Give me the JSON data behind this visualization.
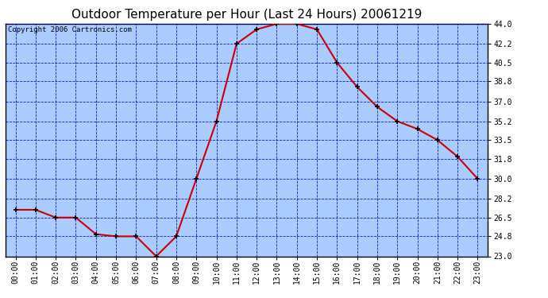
{
  "title": "Outdoor Temperature per Hour (Last 24 Hours) 20061219",
  "copyright": "Copyright 2006 Cartronics.com",
  "hours": [
    "00:00",
    "01:00",
    "02:00",
    "03:00",
    "04:00",
    "05:00",
    "06:00",
    "07:00",
    "08:00",
    "09:00",
    "10:00",
    "11:00",
    "12:00",
    "13:00",
    "14:00",
    "15:00",
    "16:00",
    "17:00",
    "18:00",
    "19:00",
    "20:00",
    "21:00",
    "22:00",
    "23:00"
  ],
  "temps": [
    27.2,
    27.2,
    26.5,
    26.5,
    25.0,
    24.8,
    24.8,
    23.0,
    24.8,
    30.0,
    35.2,
    42.2,
    43.5,
    44.0,
    44.0,
    43.5,
    40.5,
    38.3,
    36.5,
    35.2,
    34.5,
    33.5,
    32.0,
    30.0
  ],
  "line_color": "#cc0000",
  "marker_color": "#000000",
  "bg_color": "#aaccff",
  "grid_color": "#0000bb",
  "border_color": "#000000",
  "fig_bg_color": "#ffffff",
  "ylim_min": 23.0,
  "ylim_max": 44.0,
  "yticks": [
    23.0,
    24.8,
    26.5,
    28.2,
    30.0,
    31.8,
    33.5,
    35.2,
    37.0,
    38.8,
    40.5,
    42.2,
    44.0
  ],
  "ytick_labels": [
    "23.0",
    "24.8",
    "26.5",
    "28.2",
    "30.0",
    "31.8",
    "33.5",
    "35.2",
    "37.0",
    "38.8",
    "40.5",
    "42.2",
    "44.0"
  ],
  "title_fontsize": 11,
  "copyright_fontsize": 6.5,
  "tick_fontsize": 7,
  "figwidth": 6.9,
  "figheight": 3.75,
  "dpi": 100
}
